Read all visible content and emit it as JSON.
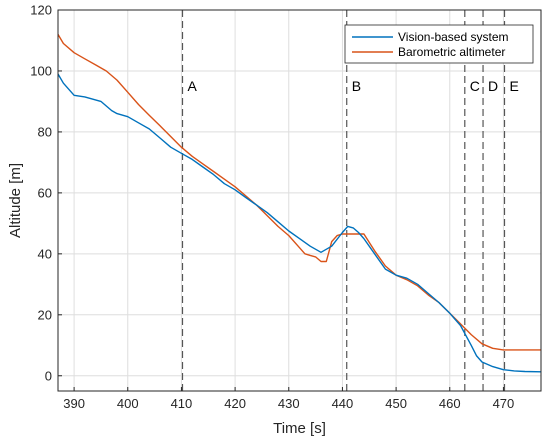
{
  "chart_data": {
    "type": "line",
    "xlabel": "Time [s]",
    "ylabel": "Altitude [m]",
    "xlim": [
      387,
      477
    ],
    "ylim": [
      -5,
      120
    ],
    "xticks": [
      390,
      400,
      410,
      420,
      430,
      440,
      450,
      460,
      470
    ],
    "yticks": [
      0,
      20,
      40,
      60,
      80,
      100,
      120
    ],
    "grid": true,
    "legend_position": "top-right",
    "colors": {
      "vision": "#0072BD",
      "baro": "#D95319",
      "event_line": "#555555"
    },
    "events": [
      {
        "label": "A",
        "x": 410.2
      },
      {
        "label": "B",
        "x": 440.8
      },
      {
        "label": "C",
        "x": 462.8
      },
      {
        "label": "D",
        "x": 466.2
      },
      {
        "label": "E",
        "x": 470.2
      }
    ],
    "series": [
      {
        "name": "Vision-based system",
        "x": [
          387,
          388,
          389,
          390,
          392,
          393,
          395,
          397,
          398,
          400,
          402,
          404,
          406,
          408,
          410,
          412,
          414,
          416,
          418,
          420,
          422,
          424,
          426,
          428,
          430,
          432,
          434,
          436,
          438,
          440,
          441,
          442,
          443,
          444,
          446,
          448,
          450,
          452,
          454,
          456,
          458,
          460,
          462,
          464,
          465,
          466,
          468,
          470,
          472,
          474,
          477
        ],
        "y": [
          99,
          96,
          94,
          92,
          91.5,
          91,
          90,
          87,
          86,
          85,
          83,
          81,
          78,
          75,
          73,
          71,
          68.5,
          66,
          63,
          61,
          58.5,
          56,
          53.5,
          50.5,
          47.5,
          45,
          42.5,
          40.5,
          42.5,
          47,
          49,
          48.5,
          47,
          45,
          40,
          35,
          33,
          32,
          30,
          27,
          24,
          20.5,
          16.5,
          10,
          6.5,
          4.5,
          3,
          2,
          1.6,
          1.4,
          1.3
        ]
      },
      {
        "name": "Barometric altimeter",
        "x": [
          387,
          388,
          390,
          392,
          394,
          396,
          398,
          400,
          402,
          404,
          406,
          408,
          410,
          412,
          414,
          416,
          418,
          420,
          422,
          424,
          426,
          428,
          430,
          432,
          433,
          434,
          435,
          436,
          437,
          438,
          439,
          440,
          442,
          444,
          446,
          448,
          450,
          452,
          454,
          456,
          458,
          460,
          462,
          464,
          466,
          468,
          470,
          472,
          474,
          477
        ],
        "y": [
          112,
          109,
          106,
          104,
          102,
          100,
          97,
          93,
          89,
          85.5,
          82,
          78.5,
          75,
          72,
          69.5,
          67,
          64.5,
          62,
          59,
          56,
          52.5,
          49,
          46,
          42,
          40,
          39.5,
          39,
          37.5,
          37.5,
          44,
          46,
          46.5,
          46.5,
          46.5,
          41,
          36,
          33,
          31.5,
          29.5,
          26.5,
          24,
          20.5,
          17,
          13.5,
          10.5,
          9,
          8.5,
          8.5,
          8.5,
          8.5
        ]
      }
    ]
  }
}
